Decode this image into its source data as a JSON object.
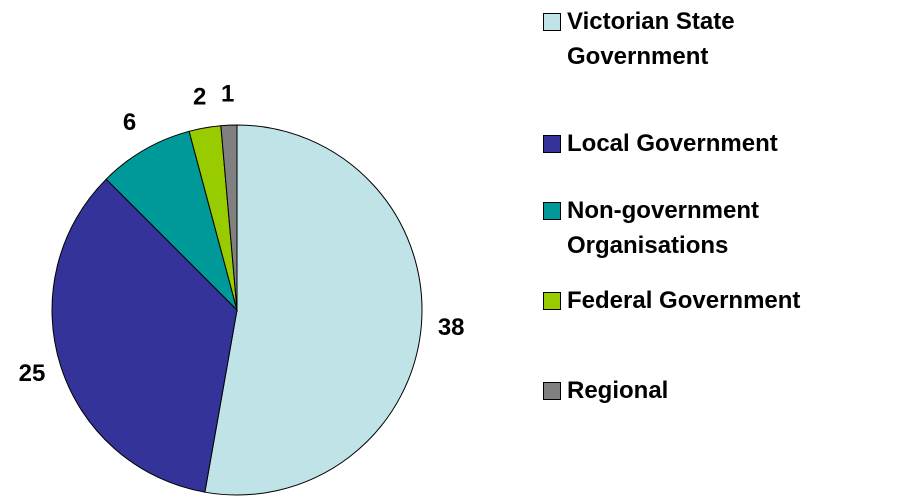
{
  "chart_data": {
    "type": "pie",
    "categories": [
      "Victorian State Government",
      "Local Government",
      "Non-government Organisations",
      "Federal Government",
      "Regional"
    ],
    "values": [
      38,
      25,
      6,
      2,
      1
    ],
    "colors": [
      "#bfe3e6",
      "#333399",
      "#009999",
      "#99cc00",
      "#808080"
    ],
    "legend": "right"
  }
}
